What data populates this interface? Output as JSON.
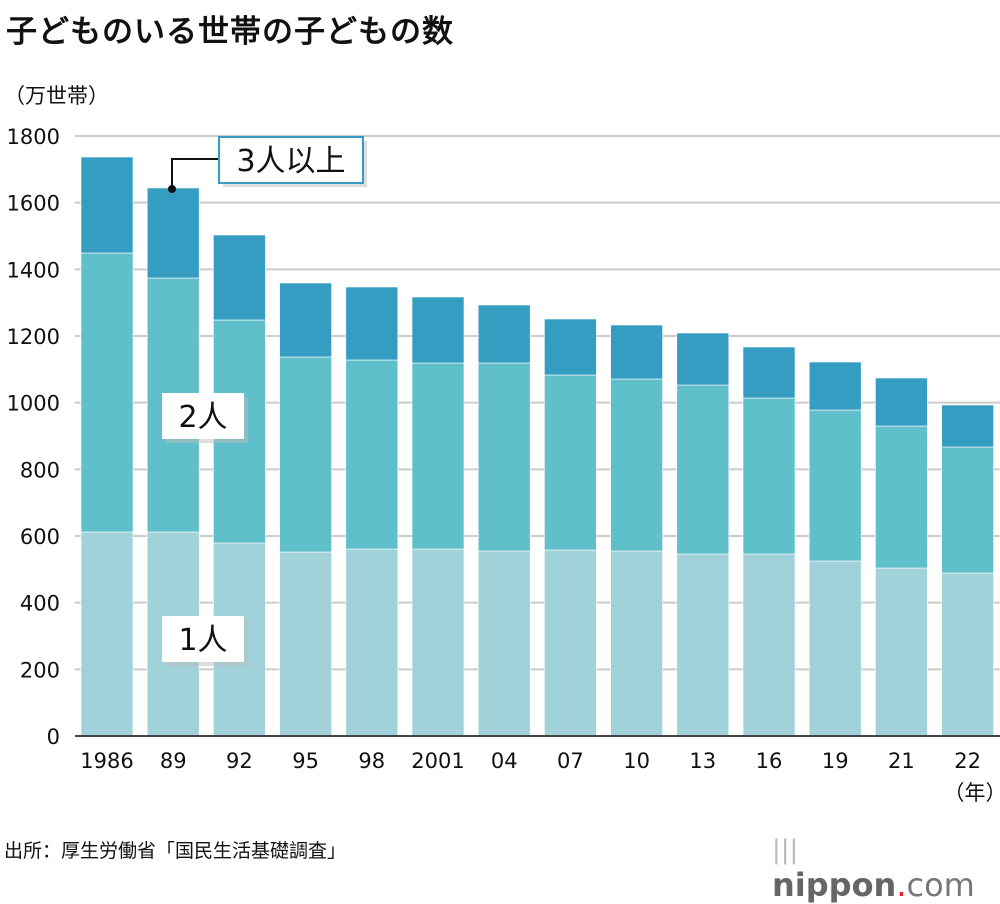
{
  "chart_data": {
    "type": "bar",
    "stacked": true,
    "title": "子どものいる世帯の子どもの数",
    "ylabel": "（万世帯）",
    "xlabel": "（年）",
    "ylim": [
      0,
      1800
    ],
    "yticks": [
      0,
      200,
      400,
      600,
      800,
      1000,
      1200,
      1400,
      1600,
      1800
    ],
    "grid": true,
    "categories": [
      "1986",
      "89",
      "92",
      "95",
      "98",
      "2001",
      "04",
      "07",
      "10",
      "13",
      "16",
      "19",
      "21",
      "22"
    ],
    "series": [
      {
        "name": "1人",
        "color": "#a1d2da",
        "values": [
          612,
          612,
          579,
          552,
          561,
          561,
          555,
          558,
          555,
          546,
          546,
          525,
          504,
          489
        ]
      },
      {
        "name": "2人",
        "color": "#5fbfca",
        "values": [
          837,
          762,
          669,
          585,
          567,
          558,
          564,
          525,
          516,
          507,
          468,
          453,
          426,
          378
        ]
      },
      {
        "name": "3人以上",
        "color": "#369dc2",
        "values": [
          288,
          270,
          255,
          222,
          219,
          198,
          174,
          168,
          162,
          156,
          153,
          144,
          144,
          126
        ]
      }
    ],
    "source": "出所：厚生労働省「国民生活基礎調査」"
  },
  "logo": {
    "text": "nippon.com"
  }
}
